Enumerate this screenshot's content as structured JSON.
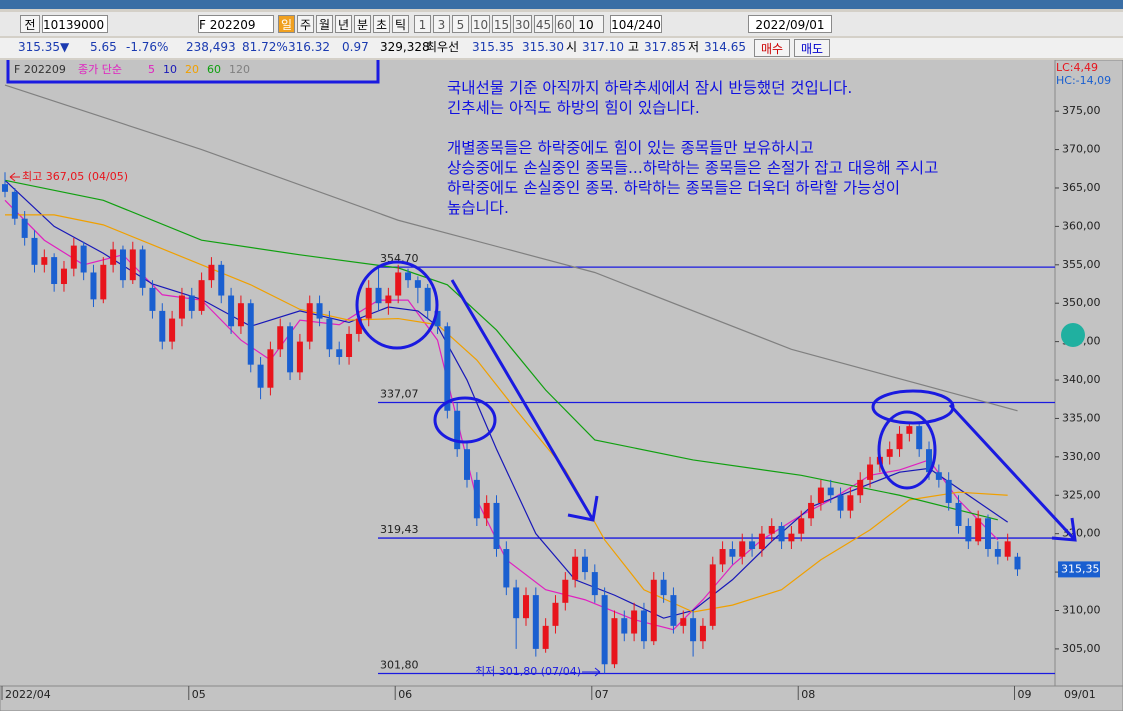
{
  "toolbar": {
    "all": "전",
    "code": "10139000",
    "search": "F 202209",
    "periods": [
      "일",
      "주",
      "월",
      "년",
      "분",
      "초",
      "틱"
    ],
    "intervals": [
      "1",
      "3",
      "5",
      "10",
      "15",
      "30",
      "45",
      "60"
    ],
    "count_select": "10",
    "range": "104/240",
    "date": "2022/09/01"
  },
  "quote": {
    "price": "315.35▼",
    "change": "5.65",
    "change_pct": "-1.76%",
    "volume": "238,493",
    "vol_ratio": "81.72%",
    "avg": "316.32",
    "diff": "0.97",
    "open_interest": "329,328",
    "best_label": "최우선",
    "ask": "315.35",
    "bid": "315.30",
    "open_label": "시",
    "open": "317.10",
    "high_label": "고",
    "high": "317.85",
    "low_label": "저",
    "low": "314.65",
    "buy": "매수",
    "sell": "매도"
  },
  "note": [
    "국내선물 기준 아직까지 하락추세에서 잠시 반등했던 것입니다.",
    "긴추세는 아직도 하방의 힘이 있습니다.",
    "개별종목들은 하락중에도 힘이 있는 종목들만 보유하시고",
    "상승중에도 손실중인 종목들...하락하는 종목들은 손절가 잡고 대응해 주시고",
    "하락중에도 손실중인 종목. 하락하는 종목들은 더욱더 하락할 가능성이",
    "높습니다."
  ],
  "chart_data": {
    "type": "candlestick",
    "symbol": "F 202209",
    "ma_label": "종가 단순",
    "up_color": "#e8141c",
    "down_color": "#1a5fd0",
    "lc": "LC:4,49",
    "hc": "HC:-14,09",
    "high_note": "최고 367,05 (04/05)",
    "low_note": "최저 301,80 (07/04)",
    "end_date": "09/01",
    "last_price": {
      "value": 315.35,
      "label": "315,35"
    },
    "ylim": [
      300.3,
      381.4
    ],
    "yticks": [
      {
        "value": 305,
        "label": "305,00"
      },
      {
        "value": 310,
        "label": "310,00"
      },
      {
        "value": 315,
        "label": "315,00"
      },
      {
        "value": 320,
        "label": "320,00"
      },
      {
        "value": 325,
        "label": "325,00"
      },
      {
        "value": 330,
        "label": "330,00"
      },
      {
        "value": 335,
        "label": "335,00"
      },
      {
        "value": 340,
        "label": "340,00"
      },
      {
        "value": 345,
        "label": "345,00"
      },
      {
        "value": 350,
        "label": "350,00"
      },
      {
        "value": 355,
        "label": "355,00"
      },
      {
        "value": 360,
        "label": "360,00"
      },
      {
        "value": 365,
        "label": "365,00"
      },
      {
        "value": 370,
        "label": "370,00"
      },
      {
        "value": 375,
        "label": "375,00"
      }
    ],
    "hlines": [
      {
        "value": 354.7,
        "label": "354,70"
      },
      {
        "value": 337.07,
        "label": "337,07"
      },
      {
        "value": 319.43,
        "label": "319,43"
      },
      {
        "value": 301.8,
        "label": "301,80"
      }
    ],
    "categories": [
      "2022/04",
      null,
      null,
      null,
      null,
      null,
      null,
      null,
      null,
      null,
      null,
      null,
      null,
      null,
      null,
      null,
      null,
      null,
      null,
      "05",
      null,
      null,
      null,
      null,
      null,
      null,
      null,
      null,
      null,
      null,
      null,
      null,
      null,
      null,
      null,
      null,
      null,
      null,
      null,
      null,
      "06",
      null,
      null,
      null,
      null,
      null,
      null,
      null,
      null,
      null,
      null,
      null,
      null,
      null,
      null,
      null,
      null,
      null,
      null,
      null,
      "07",
      null,
      null,
      null,
      null,
      null,
      null,
      null,
      null,
      null,
      null,
      null,
      null,
      null,
      null,
      null,
      null,
      null,
      null,
      null,
      null,
      "08",
      null,
      null,
      null,
      null,
      null,
      null,
      null,
      null,
      null,
      null,
      null,
      null,
      null,
      null,
      null,
      null,
      null,
      null,
      null,
      null,
      null,
      "09"
    ],
    "candles": [
      [
        365.5,
        367.05,
        363.8,
        364.5
      ],
      [
        364.5,
        365,
        360.2,
        361
      ],
      [
        361,
        362,
        357.5,
        358.5
      ],
      [
        358.5,
        359.5,
        354,
        355
      ],
      [
        355,
        357,
        354,
        356
      ],
      [
        356,
        356.5,
        351.5,
        352.5
      ],
      [
        352.5,
        355.5,
        351.5,
        354.5
      ],
      [
        354.5,
        358.5,
        353.5,
        357.5
      ],
      [
        357.5,
        358,
        353,
        354
      ],
      [
        354,
        355,
        349.5,
        350.5
      ],
      [
        350.5,
        356,
        350,
        355
      ],
      [
        355,
        358,
        354,
        357
      ],
      [
        357,
        357.5,
        352,
        353
      ],
      [
        353,
        358,
        352.5,
        357
      ],
      [
        357,
        357.5,
        351,
        352
      ],
      [
        352,
        353,
        348,
        349
      ],
      [
        349,
        350,
        344,
        345
      ],
      [
        345,
        349,
        344,
        348
      ],
      [
        348,
        352,
        347,
        351
      ],
      [
        351,
        352,
        348,
        349
      ],
      [
        349,
        354,
        348.5,
        353
      ],
      [
        353,
        356,
        352,
        355
      ],
      [
        355,
        355.5,
        350,
        351
      ],
      [
        351,
        352,
        346,
        347
      ],
      [
        347,
        351,
        346,
        350
      ],
      [
        350,
        350.5,
        341,
        342
      ],
      [
        342,
        343,
        337.5,
        339
      ],
      [
        339,
        345,
        338,
        344
      ],
      [
        344,
        348,
        343,
        347
      ],
      [
        347,
        347.5,
        340,
        341
      ],
      [
        341,
        346,
        340,
        345
      ],
      [
        345,
        351,
        344,
        350
      ],
      [
        350,
        351,
        347,
        348
      ],
      [
        348,
        349,
        343,
        344
      ],
      [
        344,
        345,
        342,
        343
      ],
      [
        343,
        347,
        342,
        346
      ],
      [
        346,
        349,
        345,
        348
      ],
      [
        348,
        353,
        347,
        352
      ],
      [
        352,
        354.7,
        349,
        350
      ],
      [
        350,
        352,
        348.5,
        351
      ],
      [
        351,
        355,
        350,
        354
      ],
      [
        354,
        354.5,
        352,
        353
      ],
      [
        353,
        353.5,
        350,
        352
      ],
      [
        352,
        352.5,
        348,
        349
      ],
      [
        349,
        350,
        346,
        347
      ],
      [
        347,
        347.5,
        335,
        336
      ],
      [
        336,
        337,
        330,
        331
      ],
      [
        331,
        332,
        326,
        327
      ],
      [
        327,
        328,
        321,
        322
      ],
      [
        322,
        325,
        321,
        324
      ],
      [
        324,
        325,
        317,
        318
      ],
      [
        318,
        319,
        312,
        313
      ],
      [
        313,
        314,
        305,
        309
      ],
      [
        309,
        313,
        308,
        312
      ],
      [
        312,
        313,
        304,
        305
      ],
      [
        305,
        309,
        304.5,
        308
      ],
      [
        308,
        312,
        307,
        311
      ],
      [
        311,
        315,
        310,
        314
      ],
      [
        314,
        318,
        313,
        317
      ],
      [
        317,
        318,
        314,
        315
      ],
      [
        315,
        316,
        311,
        312
      ],
      [
        312,
        313,
        301.8,
        303
      ],
      [
        303,
        310,
        302.5,
        309
      ],
      [
        309,
        310,
        306,
        307
      ],
      [
        307,
        311,
        306,
        310
      ],
      [
        310,
        311,
        305,
        306
      ],
      [
        306,
        315,
        305.5,
        314
      ],
      [
        314,
        315,
        311,
        312
      ],
      [
        312,
        313,
        307,
        308
      ],
      [
        308,
        310,
        307,
        309
      ],
      [
        309,
        310,
        304,
        306
      ],
      [
        306,
        309,
        305,
        308
      ],
      [
        308,
        317,
        307.5,
        316
      ],
      [
        316,
        319,
        315,
        318
      ],
      [
        318,
        319,
        316,
        317
      ],
      [
        317,
        320,
        316,
        319
      ],
      [
        319,
        320,
        317,
        318
      ],
      [
        318,
        321,
        317,
        320
      ],
      [
        320,
        322,
        319,
        321
      ],
      [
        321,
        321.5,
        318,
        319
      ],
      [
        319,
        321,
        318,
        320
      ],
      [
        320,
        323,
        319,
        322
      ],
      [
        322,
        325,
        321,
        324
      ],
      [
        324,
        327,
        323,
        326
      ],
      [
        326,
        327,
        324,
        325
      ],
      [
        325,
        326,
        322,
        323
      ],
      [
        323,
        326,
        322,
        325
      ],
      [
        325,
        328,
        324,
        327
      ],
      [
        327,
        330,
        326,
        329
      ],
      [
        329,
        331,
        328,
        330
      ],
      [
        330,
        332,
        329,
        331
      ],
      [
        331,
        334,
        330,
        333
      ],
      [
        333,
        334.5,
        332,
        334
      ],
      [
        334,
        334.5,
        330,
        331
      ],
      [
        331,
        332,
        327,
        328
      ],
      [
        328,
        329,
        326,
        327
      ],
      [
        327,
        328,
        323,
        324
      ],
      [
        324,
        325,
        320,
        321
      ],
      [
        321,
        322,
        318,
        319
      ],
      [
        319,
        323,
        318.5,
        322
      ],
      [
        322,
        322.5,
        317,
        318
      ],
      [
        318,
        319,
        316,
        317
      ],
      [
        317,
        320,
        316.5,
        319
      ],
      [
        317,
        317.5,
        314.5,
        315.35
      ]
    ],
    "series": [
      {
        "name": "5",
        "color": "#e020c0",
        "x": [
          0,
          4,
          8,
          12,
          16,
          20,
          24,
          27,
          30,
          34,
          38,
          41,
          44,
          46,
          48,
          51,
          55,
          59,
          64,
          68,
          71,
          74,
          77,
          81,
          84,
          88,
          91,
          94,
          97,
          101
        ],
        "values": [
          363.4,
          358.2,
          355,
          356.3,
          351.1,
          350.4,
          345.2,
          342.6,
          347.8,
          347.2,
          350.4,
          350.4,
          345.2,
          334.8,
          324.4,
          316.6,
          312.7,
          311.4,
          308.8,
          307.5,
          311.4,
          315.9,
          319.2,
          322.4,
          324.4,
          327.6,
          328.3,
          329.6,
          324.4,
          319.2
        ]
      },
      {
        "name": "10",
        "color": "#1818b8",
        "x": [
          0,
          5,
          10,
          15,
          20,
          25,
          30,
          35,
          39,
          42,
          44,
          47,
          50,
          54,
          58,
          62,
          67,
          70,
          74,
          78,
          82,
          87,
          91,
          94,
          98,
          102
        ],
        "values": [
          366,
          360,
          356.5,
          352.5,
          350.5,
          347,
          349,
          347.5,
          349.5,
          349,
          347,
          340,
          331,
          320,
          314,
          312,
          309,
          310,
          314,
          319,
          323.5,
          326,
          328,
          328.5,
          325,
          321.5
        ]
      },
      {
        "name": "20",
        "color": "#f0a000",
        "x": [
          0,
          5,
          10,
          15,
          20,
          25,
          30,
          35,
          40,
          44,
          48,
          52,
          57,
          61,
          65,
          70,
          74,
          79,
          83,
          88,
          92,
          97,
          102
        ],
        "values": [
          361.5,
          361.5,
          360.2,
          357.6,
          355,
          352.4,
          349.2,
          347.8,
          348,
          347.2,
          342.6,
          336.1,
          328.3,
          319.2,
          312.7,
          309.8,
          310.7,
          312.7,
          316.6,
          320.5,
          324.4,
          325.4,
          325
        ]
      },
      {
        "name": "60",
        "color": "#10a010",
        "x": [
          0,
          10,
          20,
          30,
          40,
          45,
          50,
          55,
          60,
          70,
          81,
          91,
          101
        ],
        "values": [
          366,
          363.4,
          358.2,
          356.3,
          354.6,
          352.4,
          346.5,
          338.7,
          332.2,
          329.6,
          327.6,
          325,
          321.8
        ]
      },
      {
        "name": "120",
        "color": "#808080",
        "x": [
          0,
          20,
          40,
          60,
          80,
          103
        ],
        "values": [
          378.4,
          370,
          360.8,
          354,
          344,
          336
        ]
      }
    ]
  }
}
